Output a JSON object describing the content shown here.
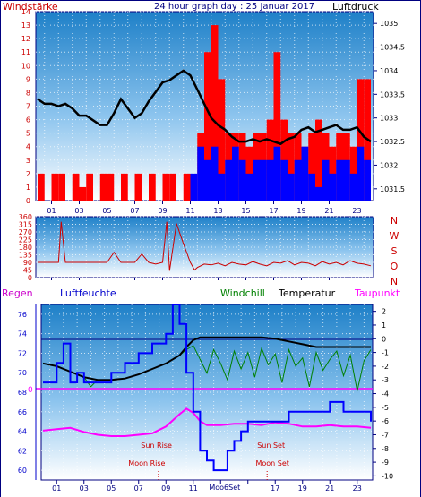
{
  "chart_data": [
    {
      "type": "line",
      "title": "24 hour graph day : 25 Januar 2017",
      "left_axis_label": "Windstärke",
      "right_axis_label": "Luftdruck",
      "x_ticks": [
        "01",
        "03",
        "05",
        "07",
        "09",
        "11",
        "13",
        "15",
        "17",
        "19",
        "21",
        "23"
      ],
      "left_ylim": [
        0,
        14
      ],
      "left_ticks": [
        0,
        1,
        2,
        3,
        4,
        5,
        6,
        7,
        8,
        9,
        10,
        11,
        12,
        13,
        14
      ],
      "right_ylim": [
        1031.25,
        1035.25
      ],
      "right_ticks": [
        1031.5,
        1032,
        1032.5,
        1033,
        1033.5,
        1034,
        1034.5,
        1035
      ],
      "grid": true,
      "series": [
        {
          "name": "Luftdruck",
          "axis": "right",
          "color": "#000000",
          "x": [
            0,
            0.5,
            1,
            1.5,
            2,
            2.5,
            3,
            3.5,
            4,
            4.5,
            5,
            5.5,
            6,
            6.5,
            7,
            7.5,
            8,
            8.5,
            9,
            9.5,
            10,
            10.5,
            11,
            11.5,
            12,
            12.5,
            13,
            13.5,
            14,
            14.5,
            15,
            15.5,
            16,
            16.5,
            17,
            17.5,
            18,
            18.5,
            19,
            19.5,
            20,
            20.5,
            21,
            21.5,
            22,
            22.5,
            23,
            23.5,
            24
          ],
          "y": [
            1033.4,
            1033.3,
            1033.3,
            1033.25,
            1033.3,
            1033.2,
            1033.05,
            1033.05,
            1032.95,
            1032.85,
            1032.85,
            1033.1,
            1033.4,
            1033.2,
            1033.0,
            1033.1,
            1033.35,
            1033.55,
            1033.75,
            1033.8,
            1033.9,
            1034.0,
            1033.9,
            1033.6,
            1033.3,
            1033.0,
            1032.85,
            1032.75,
            1032.6,
            1032.5,
            1032.5,
            1032.55,
            1032.5,
            1032.55,
            1032.5,
            1032.45,
            1032.55,
            1032.6,
            1032.75,
            1032.8,
            1032.7,
            1032.75,
            1032.8,
            1032.85,
            1032.75,
            1032.75,
            1032.8,
            1032.6,
            1032.5
          ]
        },
        {
          "name": "Wind",
          "axis": "left",
          "color": "#0000ff",
          "x": [
            11,
            11.5,
            12,
            12.5,
            13,
            13.5,
            14,
            14.5,
            15,
            15.5,
            16,
            16.5,
            17,
            17.5,
            18,
            18.5,
            19,
            19.5,
            20,
            20.5,
            21,
            21.5,
            22,
            22.5,
            23,
            23.5,
            24
          ],
          "y": [
            2,
            4,
            3,
            4,
            2,
            3,
            4,
            3,
            2,
            3,
            3,
            3,
            4,
            3,
            2,
            3,
            4,
            2,
            1,
            3,
            2,
            3,
            3,
            2,
            4,
            3,
            2
          ]
        },
        {
          "name": "Böen",
          "axis": "left",
          "color": "#ff0000",
          "x": [
            0,
            0.5,
            1,
            1.5,
            2,
            2.5,
            3,
            3.5,
            4,
            4.5,
            5,
            5.5,
            6,
            6.5,
            7,
            7.5,
            8,
            8.5,
            9,
            9.5,
            10,
            10.5,
            11,
            11.5,
            12,
            12.5,
            13,
            13.5,
            14,
            14.5,
            15,
            15.5,
            16,
            16.5,
            17,
            17.5,
            18,
            18.5,
            19,
            19.5,
            20,
            20.5,
            21,
            21.5,
            22,
            22.5,
            23,
            23.5,
            24
          ],
          "y": [
            2,
            0,
            2,
            2,
            0,
            2,
            1,
            2,
            0,
            2,
            2,
            0,
            2,
            0,
            2,
            0,
            2,
            0,
            2,
            2,
            0,
            2,
            0,
            5,
            11,
            13,
            9,
            5,
            5,
            5,
            4,
            5,
            5,
            6,
            11,
            6,
            5,
            5,
            4,
            5,
            6,
            5,
            4,
            5,
            5,
            4,
            9,
            9,
            5
          ]
        }
      ]
    },
    {
      "type": "line",
      "right_axis_label": [
        "N",
        "W",
        "S",
        "O",
        "N"
      ],
      "x_ticks": [
        "01",
        "03",
        "05",
        "07",
        "09",
        "11",
        "13",
        "15",
        "17",
        "19",
        "21",
        "23"
      ],
      "ylim": [
        0,
        360
      ],
      "yticks": [
        0,
        45,
        90,
        135,
        180,
        225,
        270,
        315,
        360
      ],
      "grid": true,
      "series": [
        {
          "name": "Windrichtung",
          "color": "#cc0000",
          "x": [
            0,
            0.5,
            1,
            1.5,
            1.7,
            2,
            3,
            4,
            5,
            5.5,
            6,
            7,
            7.5,
            8,
            8.5,
            9,
            9.3,
            9.5,
            10,
            10.5,
            11,
            11.3,
            11.5,
            12,
            12.5,
            13,
            13.5,
            14,
            14.5,
            15,
            15.5,
            16,
            16.5,
            17,
            17.5,
            18,
            18.5,
            19,
            19.5,
            20,
            20.5,
            21,
            21.5,
            22,
            22.5,
            23,
            23.5,
            24
          ],
          "y": [
            90,
            90,
            90,
            90,
            330,
            90,
            90,
            90,
            90,
            150,
            90,
            90,
            140,
            90,
            80,
            90,
            330,
            40,
            320,
            200,
            90,
            45,
            60,
            80,
            75,
            85,
            70,
            90,
            80,
            75,
            95,
            80,
            70,
            90,
            85,
            100,
            75,
            90,
            85,
            70,
            95,
            80,
            90,
            75,
            100,
            85,
            80,
            70
          ]
        }
      ]
    },
    {
      "type": "line",
      "labels": {
        "rain": "Regen",
        "humidity": "Luftfeuchte",
        "windchill": "Windchill",
        "temperature": "Temperatur",
        "dewpoint": "Taupunkt"
      },
      "x_ticks": [
        "01",
        "03",
        "05",
        "07",
        "09",
        "11",
        "13",
        "15",
        "17",
        "19",
        "21",
        "23"
      ],
      "left_ylim": [
        59,
        77
      ],
      "left_ticks": [
        60,
        62,
        64,
        66,
        68,
        70,
        72,
        74,
        76
      ],
      "right_ylim": [
        -10.3,
        2.5
      ],
      "right_ticks": [
        2,
        1,
        0,
        -1,
        -2,
        -3,
        -4,
        -5,
        -6,
        -7,
        -8,
        -9,
        -10
      ],
      "rain_zero_label": "0",
      "annotations": [
        {
          "text": "Sun Rise",
          "x": 8.3
        },
        {
          "text": "Moon Rise",
          "x": 7.6
        },
        {
          "text": "Moon Set",
          "x": 16.8
        },
        {
          "text": "Sun Set",
          "x": 16.7
        },
        {
          "text": "Moo6Set",
          "x": 13.3
        }
      ],
      "series": [
        {
          "name": "Luftfeuchte",
          "axis": "left",
          "color": "#0000ff",
          "x": [
            0,
            1,
            1.5,
            2,
            2.5,
            3,
            4,
            5,
            6,
            7,
            8,
            9,
            9.5,
            10,
            10.5,
            11,
            11.5,
            12,
            12.5,
            13,
            13.5,
            14,
            14.5,
            15,
            16,
            17,
            18,
            19,
            20,
            21,
            22,
            23,
            24
          ],
          "y": [
            69,
            71,
            73,
            69,
            70,
            69,
            69,
            70,
            71,
            72,
            73,
            74,
            77,
            75,
            70,
            66,
            62,
            61,
            60,
            60,
            62,
            63,
            64,
            65,
            65,
            65,
            66,
            66,
            66,
            67,
            66,
            66,
            65
          ]
        },
        {
          "name": "Temperatur",
          "axis": "right",
          "color": "#000000",
          "x": [
            0,
            1,
            2,
            3,
            4,
            5,
            6,
            7,
            8,
            9,
            10,
            10.5,
            11,
            11.5,
            12,
            13,
            14,
            15,
            16,
            17,
            18,
            19,
            20,
            21,
            22,
            23,
            24
          ],
          "y": [
            -1.8,
            -2.0,
            -2.4,
            -2.8,
            -3.0,
            -3.0,
            -2.9,
            -2.6,
            -2.2,
            -1.8,
            -1.2,
            -0.6,
            -0.1,
            0.1,
            0.1,
            0.1,
            0.1,
            0.1,
            0.1,
            0.0,
            -0.2,
            -0.4,
            -0.6,
            -0.6,
            -0.6,
            -0.6,
            -0.6
          ]
        },
        {
          "name": "Windchill",
          "axis": "right",
          "color": "#008000",
          "x": [
            0,
            1,
            2,
            3,
            3.5,
            4,
            5,
            6,
            7,
            8,
            9,
            10,
            10.5,
            11,
            11.5,
            12,
            12.5,
            13,
            13.5,
            14,
            14.5,
            15,
            15.5,
            16,
            16.5,
            17,
            17.5,
            18,
            18.5,
            19,
            19.5,
            20,
            20.5,
            21,
            21.5,
            22,
            22.5,
            23,
            23.5,
            24
          ],
          "y": [
            -1.8,
            -2.0,
            -2.4,
            -2.8,
            -3.5,
            -3.0,
            -3.0,
            -2.9,
            -2.6,
            -2.2,
            -1.8,
            -1.2,
            -0.8,
            -0.5,
            -1.5,
            -2.5,
            -0.8,
            -1.8,
            -3.0,
            -0.9,
            -2.2,
            -1.0,
            -2.8,
            -0.7,
            -1.9,
            -1.1,
            -3.2,
            -0.8,
            -2.0,
            -1.4,
            -3.5,
            -1.0,
            -2.3,
            -1.5,
            -0.9,
            -2.7,
            -1.2,
            -3.8,
            -1.6,
            -0.8
          ]
        },
        {
          "name": "Taupunkt",
          "axis": "right",
          "color": "#ff00ff",
          "x": [
            0,
            1,
            2,
            3,
            4,
            5,
            6,
            7,
            8,
            9,
            10,
            10.5,
            11,
            11.5,
            12,
            13,
            14,
            15,
            16,
            17,
            18,
            19,
            20,
            21,
            22,
            23,
            24
          ],
          "y": [
            -6.7,
            -6.6,
            -6.5,
            -6.8,
            -7.0,
            -7.1,
            -7.1,
            -7.0,
            -6.9,
            -6.4,
            -5.5,
            -5.1,
            -5.4,
            -6.0,
            -6.3,
            -6.3,
            -6.2,
            -6.2,
            -6.3,
            -6.1,
            -6.2,
            -6.4,
            -6.4,
            -6.3,
            -6.4,
            -6.4,
            -6.5
          ]
        }
      ]
    }
  ]
}
